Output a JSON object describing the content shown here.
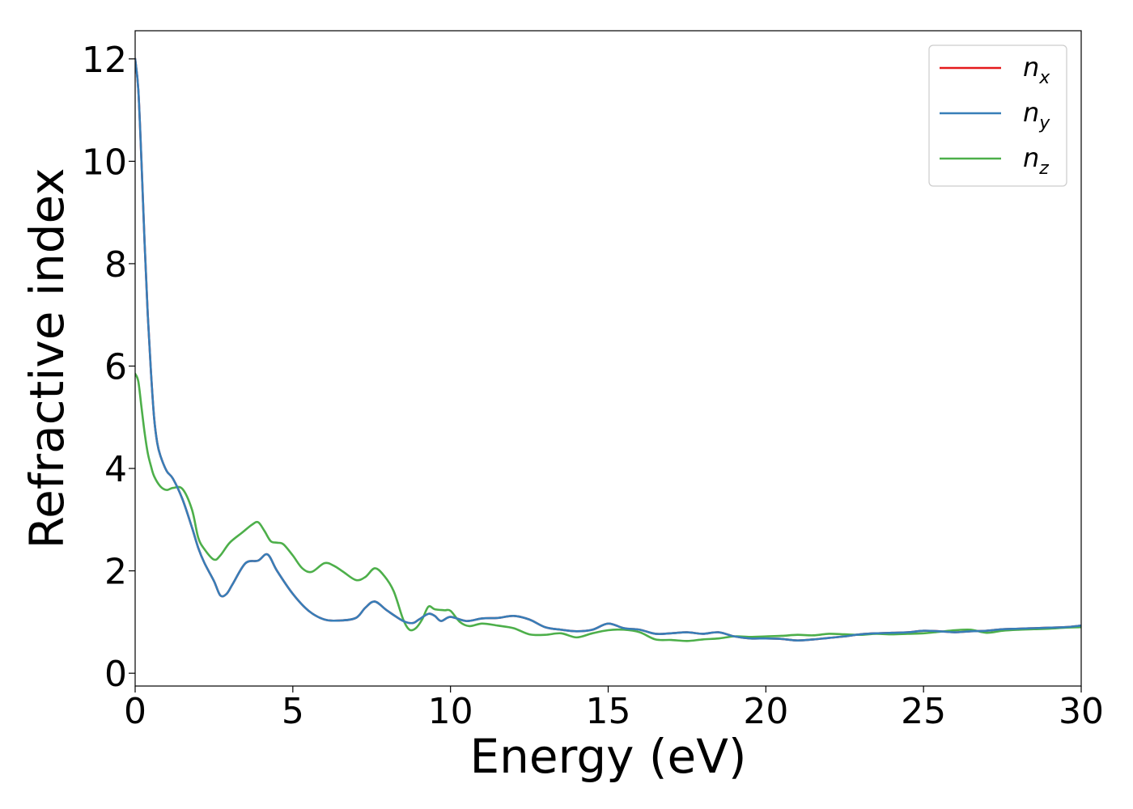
{
  "colors": {
    "background": "#ffffff",
    "axis": "#000000",
    "n_x": "#e41a1c",
    "n_y": "#377eb8",
    "n_z": "#4daf4a"
  },
  "chart_data": {
    "type": "line",
    "title": "",
    "xlabel": "Energy (eV)",
    "ylabel": "Refractive index",
    "xlim": [
      0,
      30
    ],
    "ylim": [
      -0.25,
      12.55
    ],
    "xticks": [
      0,
      5,
      10,
      15,
      20,
      25,
      30
    ],
    "xtick_labels": [
      "0",
      "5",
      "10",
      "15",
      "20",
      "25",
      "30"
    ],
    "yticks": [
      0,
      2,
      4,
      6,
      8,
      10,
      12
    ],
    "ytick_labels": [
      "0",
      "2",
      "4",
      "6",
      "8",
      "10",
      "12"
    ],
    "grid": false,
    "legend_position": "top-right",
    "series": [
      {
        "name": "n_x",
        "label_base": "n",
        "label_sub": "x",
        "color": "#e41a1c",
        "x": [
          0,
          0.1,
          0.2,
          0.3,
          0.4,
          0.5,
          0.6,
          0.7,
          0.8,
          1.0,
          1.2,
          1.5,
          1.8,
          2.0,
          2.2,
          2.5,
          2.7,
          2.9,
          3.1,
          3.5,
          3.9,
          4.2,
          4.5,
          5.0,
          5.5,
          6.0,
          6.5,
          7.0,
          7.3,
          7.6,
          8.0,
          8.5,
          8.8,
          9.0,
          9.3,
          9.5,
          9.7,
          10.0,
          10.5,
          11.0,
          11.5,
          12.0,
          12.5,
          13.0,
          13.5,
          14.0,
          14.5,
          15.0,
          15.5,
          16.0,
          16.5,
          17.0,
          17.5,
          18.0,
          18.5,
          19.0,
          19.5,
          20.0,
          20.5,
          21.0,
          21.5,
          22.0,
          22.5,
          23.0,
          23.5,
          24.0,
          24.5,
          25.0,
          25.5,
          26.0,
          26.5,
          27.0,
          27.5,
          28.0,
          28.5,
          29.0,
          29.5,
          30.0
        ],
        "y": [
          12.0,
          11.4,
          10.0,
          8.4,
          7.0,
          5.9,
          5.0,
          4.5,
          4.25,
          3.95,
          3.8,
          3.4,
          2.85,
          2.45,
          2.15,
          1.8,
          1.52,
          1.55,
          1.75,
          2.15,
          2.2,
          2.32,
          2.0,
          1.55,
          1.22,
          1.05,
          1.03,
          1.08,
          1.28,
          1.4,
          1.22,
          1.02,
          0.98,
          1.05,
          1.16,
          1.12,
          1.02,
          1.1,
          1.02,
          1.07,
          1.08,
          1.12,
          1.05,
          0.9,
          0.85,
          0.82,
          0.85,
          0.97,
          0.88,
          0.85,
          0.77,
          0.78,
          0.8,
          0.77,
          0.8,
          0.72,
          0.68,
          0.68,
          0.67,
          0.64,
          0.66,
          0.69,
          0.72,
          0.76,
          0.78,
          0.79,
          0.8,
          0.83,
          0.82,
          0.8,
          0.82,
          0.83,
          0.86,
          0.87,
          0.88,
          0.89,
          0.9,
          0.93
        ]
      },
      {
        "name": "n_y",
        "label_base": "n",
        "label_sub": "y",
        "color": "#377eb8",
        "x": [
          0,
          0.1,
          0.2,
          0.3,
          0.4,
          0.5,
          0.6,
          0.7,
          0.8,
          1.0,
          1.2,
          1.5,
          1.8,
          2.0,
          2.2,
          2.5,
          2.7,
          2.9,
          3.1,
          3.5,
          3.9,
          4.2,
          4.5,
          5.0,
          5.5,
          6.0,
          6.5,
          7.0,
          7.3,
          7.6,
          8.0,
          8.5,
          8.8,
          9.0,
          9.3,
          9.5,
          9.7,
          10.0,
          10.5,
          11.0,
          11.5,
          12.0,
          12.5,
          13.0,
          13.5,
          14.0,
          14.5,
          15.0,
          15.5,
          16.0,
          16.5,
          17.0,
          17.5,
          18.0,
          18.5,
          19.0,
          19.5,
          20.0,
          20.5,
          21.0,
          21.5,
          22.0,
          22.5,
          23.0,
          23.5,
          24.0,
          24.5,
          25.0,
          25.5,
          26.0,
          26.5,
          27.0,
          27.5,
          28.0,
          28.5,
          29.0,
          29.5,
          30.0
        ],
        "y": [
          12.0,
          11.4,
          10.0,
          8.4,
          7.0,
          5.9,
          5.0,
          4.5,
          4.25,
          3.95,
          3.8,
          3.4,
          2.85,
          2.45,
          2.15,
          1.8,
          1.52,
          1.55,
          1.75,
          2.15,
          2.2,
          2.32,
          2.0,
          1.55,
          1.22,
          1.05,
          1.03,
          1.08,
          1.28,
          1.4,
          1.22,
          1.02,
          0.98,
          1.05,
          1.16,
          1.12,
          1.02,
          1.1,
          1.02,
          1.07,
          1.08,
          1.12,
          1.05,
          0.9,
          0.85,
          0.82,
          0.85,
          0.97,
          0.88,
          0.85,
          0.77,
          0.78,
          0.8,
          0.77,
          0.8,
          0.72,
          0.68,
          0.68,
          0.67,
          0.64,
          0.66,
          0.69,
          0.72,
          0.76,
          0.78,
          0.79,
          0.8,
          0.83,
          0.82,
          0.8,
          0.82,
          0.83,
          0.86,
          0.87,
          0.88,
          0.89,
          0.9,
          0.93
        ]
      },
      {
        "name": "n_z",
        "label_base": "n",
        "label_sub": "z",
        "color": "#4daf4a",
        "x": [
          0,
          0.1,
          0.2,
          0.3,
          0.4,
          0.5,
          0.6,
          0.8,
          1.0,
          1.2,
          1.5,
          1.8,
          2.0,
          2.2,
          2.5,
          2.7,
          3.0,
          3.4,
          3.7,
          3.9,
          4.1,
          4.3,
          4.5,
          4.7,
          5.0,
          5.3,
          5.6,
          6.0,
          6.3,
          6.6,
          7.0,
          7.3,
          7.6,
          7.9,
          8.2,
          8.5,
          8.7,
          8.9,
          9.1,
          9.3,
          9.5,
          9.8,
          10.0,
          10.3,
          10.6,
          11.0,
          11.5,
          12.0,
          12.5,
          13.0,
          13.5,
          14.0,
          14.5,
          15.0,
          15.5,
          16.0,
          16.5,
          17.0,
          17.5,
          18.0,
          18.5,
          19.0,
          19.5,
          20.0,
          20.5,
          21.0,
          21.5,
          22.0,
          22.5,
          23.0,
          23.5,
          24.0,
          24.5,
          25.0,
          25.5,
          26.0,
          26.5,
          27.0,
          27.5,
          28.0,
          28.5,
          29.0,
          29.5,
          30.0
        ],
        "y": [
          5.85,
          5.7,
          5.2,
          4.7,
          4.3,
          4.05,
          3.85,
          3.65,
          3.58,
          3.62,
          3.6,
          3.2,
          2.65,
          2.42,
          2.22,
          2.3,
          2.55,
          2.75,
          2.9,
          2.95,
          2.78,
          2.58,
          2.55,
          2.52,
          2.3,
          2.05,
          1.98,
          2.15,
          2.1,
          1.98,
          1.82,
          1.88,
          2.05,
          1.9,
          1.6,
          1.05,
          0.85,
          0.88,
          1.05,
          1.3,
          1.25,
          1.23,
          1.22,
          1.0,
          0.92,
          0.97,
          0.93,
          0.88,
          0.76,
          0.75,
          0.78,
          0.7,
          0.78,
          0.84,
          0.85,
          0.8,
          0.66,
          0.65,
          0.63,
          0.66,
          0.68,
          0.72,
          0.71,
          0.72,
          0.73,
          0.75,
          0.74,
          0.77,
          0.76,
          0.75,
          0.77,
          0.76,
          0.77,
          0.78,
          0.81,
          0.84,
          0.85,
          0.79,
          0.83,
          0.85,
          0.86,
          0.87,
          0.89,
          0.9
        ]
      }
    ]
  }
}
